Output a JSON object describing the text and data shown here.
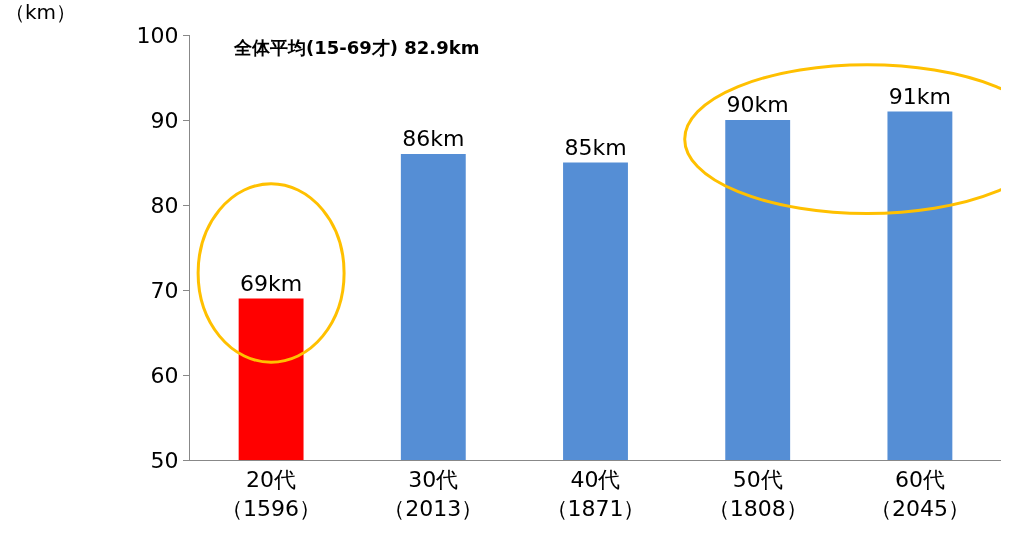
{
  "chart_data": {
    "type": "bar",
    "ylabel": "（km）",
    "annotations": [
      "全体平均(15-69才) 82.9km"
    ],
    "categories": [
      "20代（1596）",
      "30代（2013）",
      "40代（1871）",
      "50代（1808）",
      "60代（2045）"
    ],
    "values": [
      69,
      86,
      85,
      90,
      91
    ],
    "colors": [
      "#ff0000",
      "#558ed5",
      "#558ed5",
      "#558ed5",
      "#558ed5"
    ],
    "value_labels": [
      "69km",
      "86km",
      "85km",
      "90km",
      "91km"
    ],
    "ylim": [
      50,
      100
    ],
    "yticks": [
      50,
      60,
      70,
      80,
      90,
      100
    ],
    "grid": false
  }
}
